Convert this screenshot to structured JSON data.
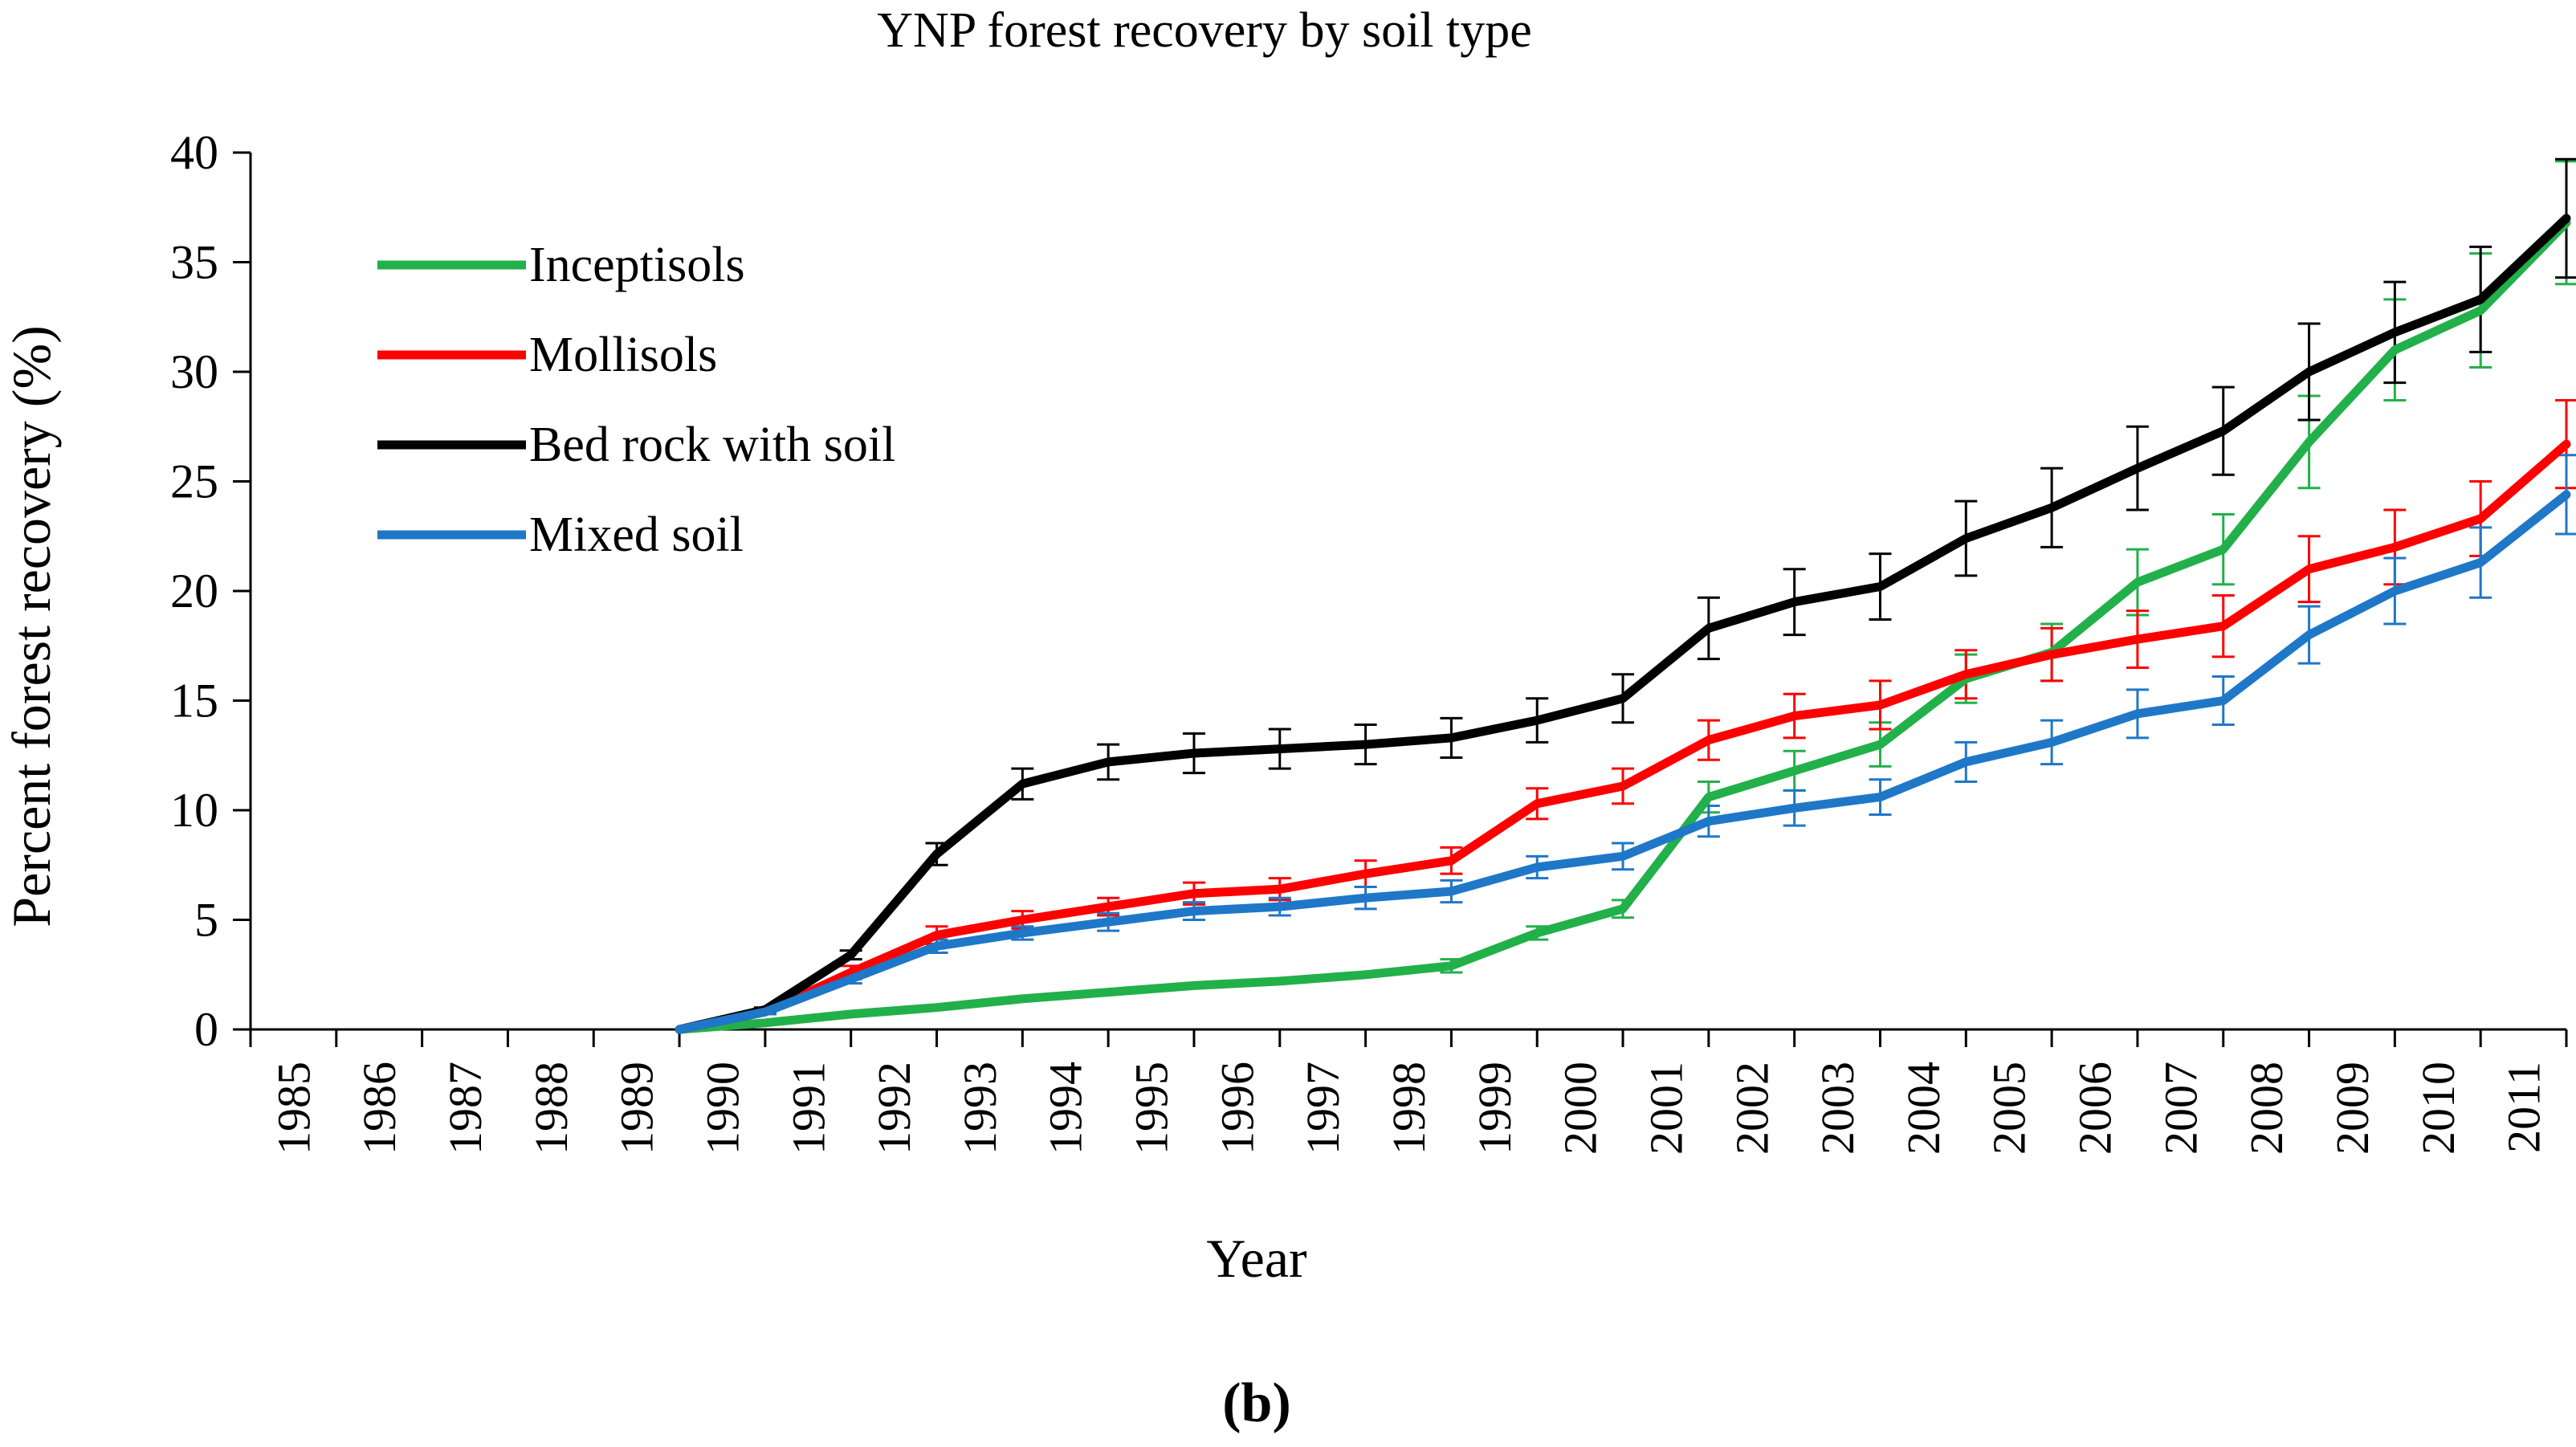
{
  "chart_data": {
    "type": "line",
    "title": "YNP forest recovery by soil type",
    "xlabel": "Year",
    "ylabel": "Percent forest recovery (%)",
    "panel_label": "(b)",
    "ylim": [
      0,
      40
    ],
    "yticks": [
      0,
      5,
      10,
      15,
      20,
      25,
      30,
      35,
      40
    ],
    "x": [
      "1985",
      "1986",
      "1987",
      "1988",
      "1989",
      "1990",
      "1991",
      "1992",
      "1993",
      "1994",
      "1995",
      "1996",
      "1997",
      "1998",
      "1999",
      "2000",
      "2001",
      "2002",
      "2003",
      "2004",
      "2005",
      "2006",
      "2007",
      "2008",
      "2009",
      "2010",
      "2011"
    ],
    "legend_position": "top-left",
    "grid": false,
    "series": [
      {
        "name": "Inceptisols",
        "color": "#22b04a",
        "values": [
          null,
          null,
          null,
          null,
          0,
          0.3,
          0.7,
          1.0,
          1.4,
          1.7,
          2.0,
          2.2,
          2.5,
          2.9,
          4.4,
          5.5,
          10.6,
          11.8,
          13.0,
          16.0,
          17.2,
          20.4,
          21.9,
          26.8,
          31.0,
          32.8,
          36.8
        ],
        "errors": [
          null,
          null,
          null,
          null,
          0,
          0,
          0,
          0,
          0,
          0,
          0,
          0,
          0,
          0.3,
          0.3,
          0.4,
          0.7,
          0.9,
          1.0,
          1.1,
          1.3,
          1.5,
          1.6,
          2.1,
          2.3,
          2.6,
          2.8
        ]
      },
      {
        "name": "Mollisols",
        "color": "#ff0000",
        "values": [
          null,
          null,
          null,
          null,
          0,
          0.8,
          2.6,
          4.3,
          5.0,
          5.6,
          6.2,
          6.4,
          7.1,
          7.7,
          10.3,
          11.1,
          13.2,
          14.3,
          14.8,
          16.2,
          17.1,
          17.8,
          18.4,
          21.0,
          22.0,
          23.3,
          26.7
        ],
        "errors": [
          null,
          null,
          null,
          null,
          0,
          0.1,
          0.3,
          0.4,
          0.4,
          0.4,
          0.5,
          0.5,
          0.6,
          0.6,
          0.7,
          0.8,
          0.9,
          1.0,
          1.1,
          1.1,
          1.2,
          1.3,
          1.4,
          1.5,
          1.7,
          1.7,
          2.0
        ]
      },
      {
        "name": "Bed rock with soil",
        "color": "#000000",
        "values": [
          null,
          null,
          null,
          null,
          0,
          0.9,
          3.4,
          8.0,
          11.2,
          12.2,
          12.6,
          12.8,
          13.0,
          13.3,
          14.1,
          15.1,
          18.3,
          19.5,
          20.2,
          22.4,
          23.8,
          25.6,
          27.3,
          30.0,
          31.8,
          33.3,
          37.0
        ],
        "errors": [
          null,
          null,
          null,
          null,
          0,
          0.1,
          0.2,
          0.5,
          0.7,
          0.8,
          0.9,
          0.9,
          0.9,
          0.9,
          1.0,
          1.1,
          1.4,
          1.5,
          1.5,
          1.7,
          1.8,
          1.9,
          2.0,
          2.2,
          2.3,
          2.4,
          2.7
        ]
      },
      {
        "name": "Mixed soil",
        "color": "#1f77c8",
        "values": [
          null,
          null,
          null,
          null,
          0,
          0.8,
          2.3,
          3.8,
          4.4,
          4.9,
          5.4,
          5.6,
          6.0,
          6.3,
          7.4,
          7.9,
          9.5,
          10.1,
          10.6,
          12.2,
          13.1,
          14.4,
          15.0,
          18.0,
          20.0,
          21.3,
          24.4
        ],
        "errors": [
          null,
          null,
          null,
          null,
          0,
          0.1,
          0.2,
          0.3,
          0.3,
          0.4,
          0.4,
          0.4,
          0.5,
          0.5,
          0.5,
          0.6,
          0.7,
          0.8,
          0.8,
          0.9,
          1.0,
          1.1,
          1.1,
          1.3,
          1.5,
          1.6,
          1.8
        ]
      }
    ]
  }
}
